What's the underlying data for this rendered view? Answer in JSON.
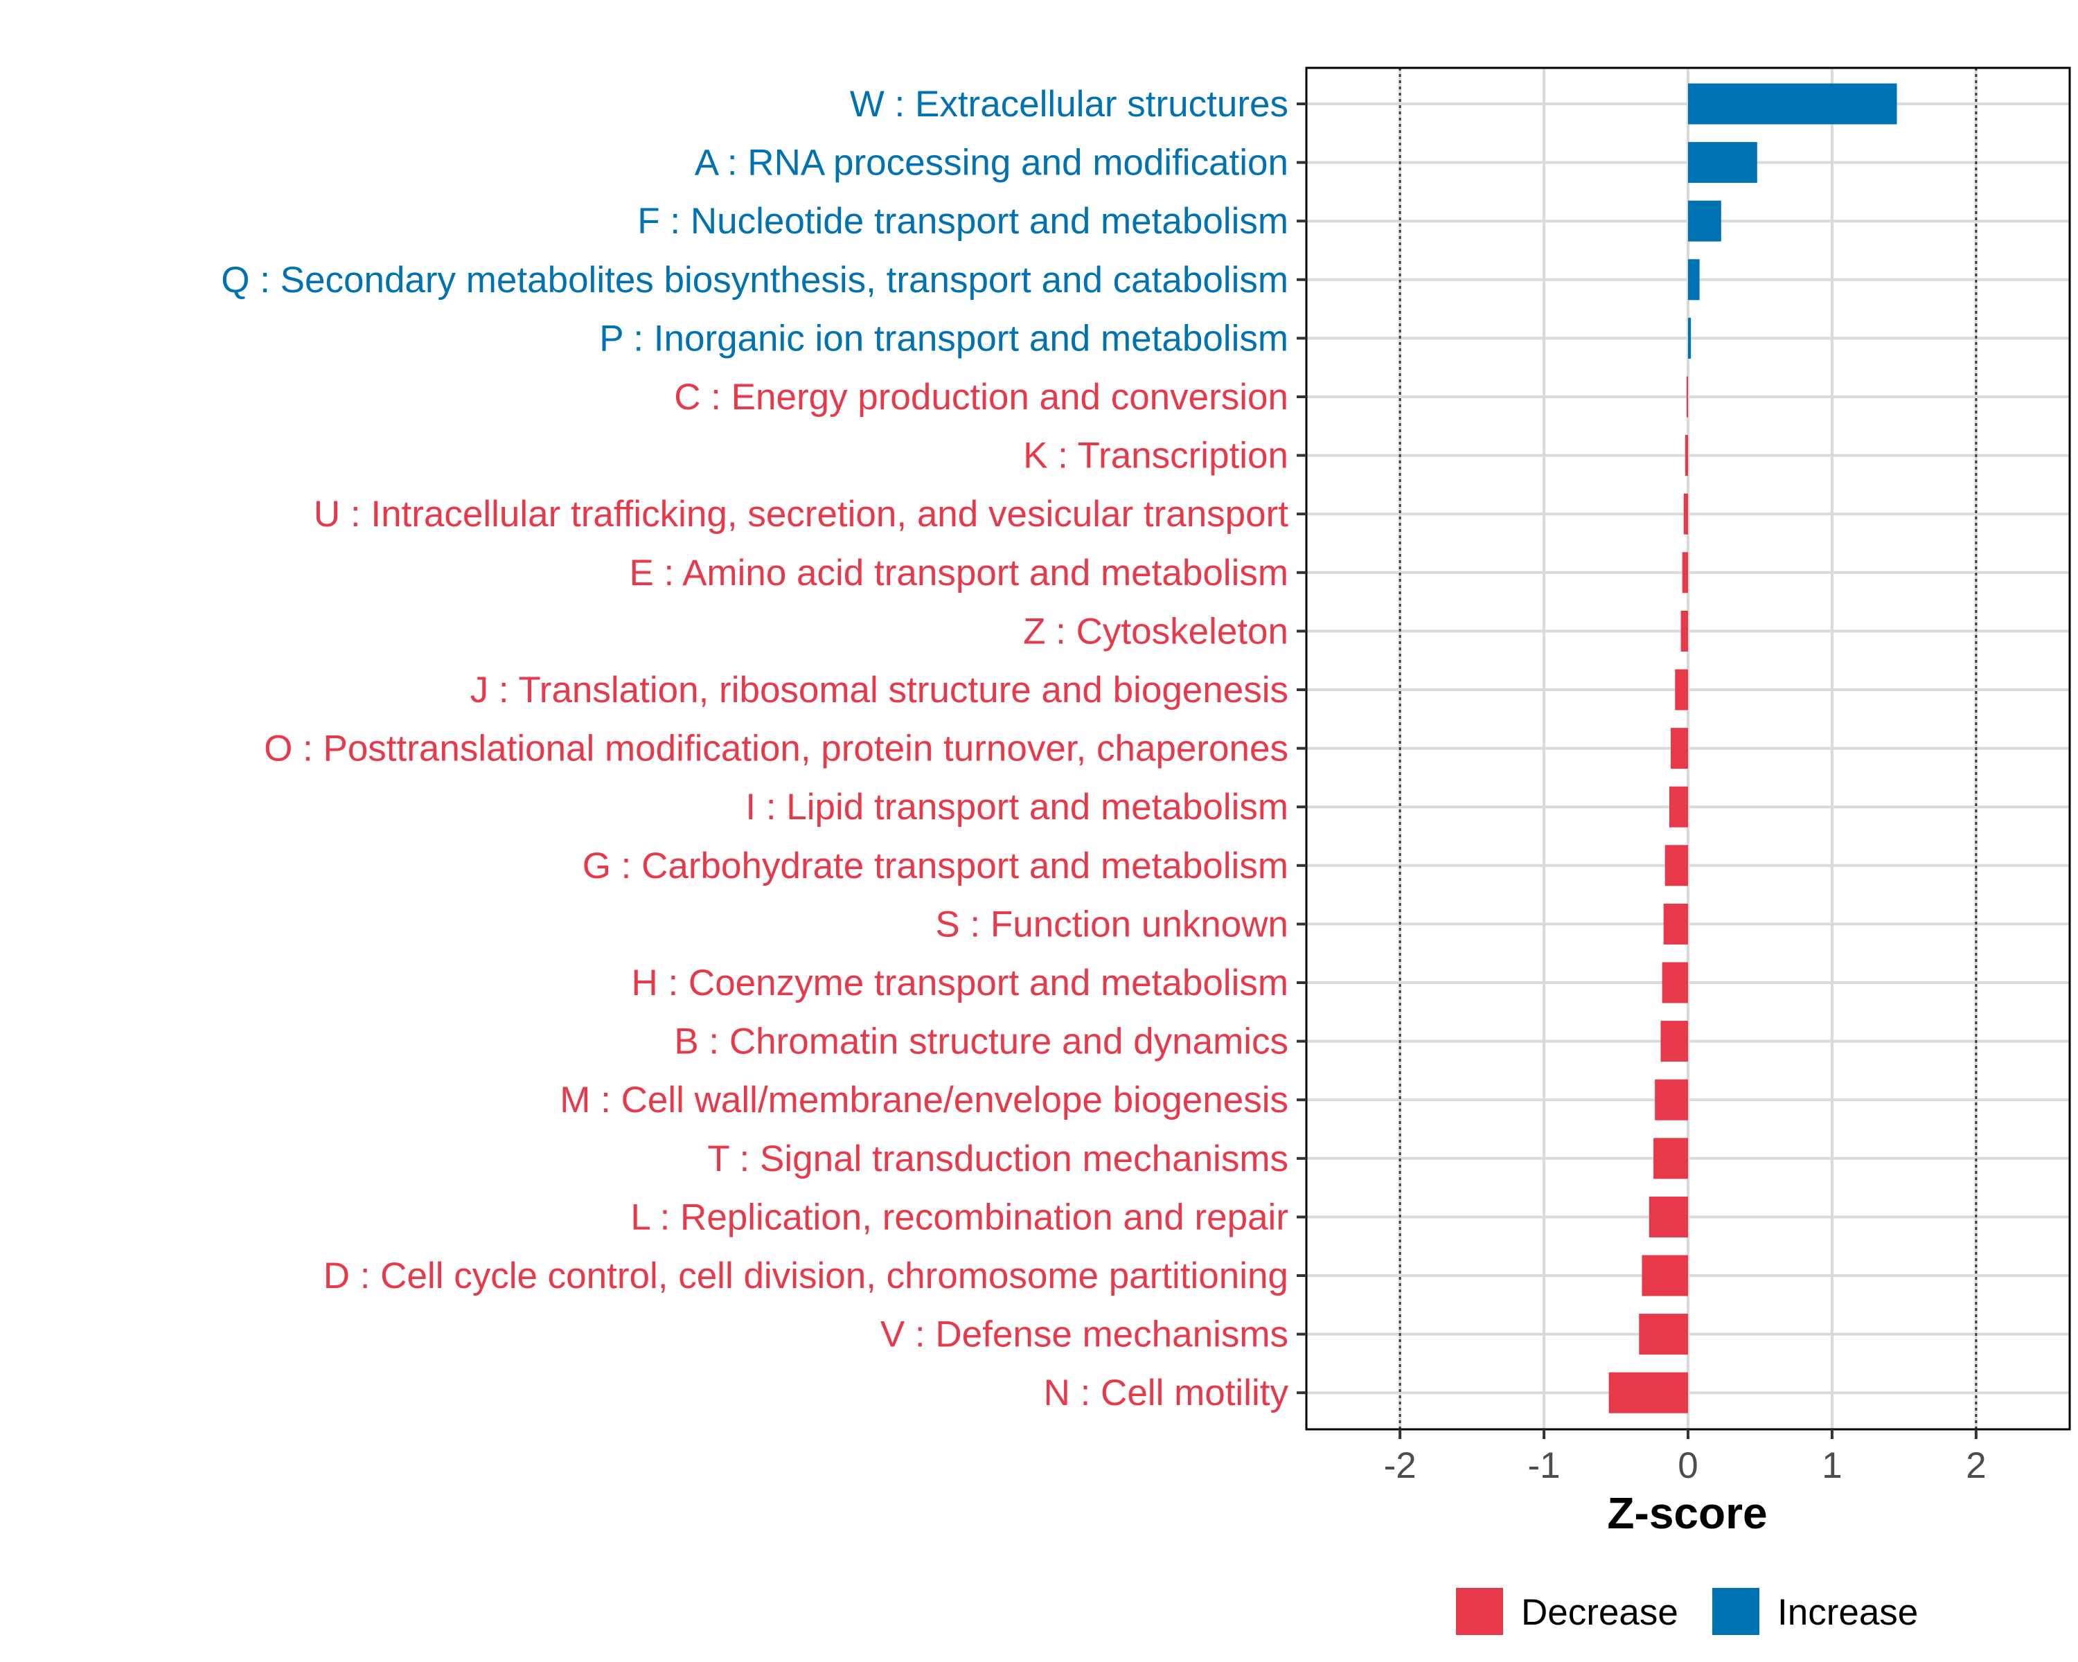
{
  "chart_data": {
    "type": "bar",
    "orientation": "horizontal",
    "xlabel": "Z-score",
    "xlim": [
      -2.65,
      2.65
    ],
    "x_ticks": [
      -2,
      -1,
      0,
      1,
      2
    ],
    "x_tick_labels": [
      "-2",
      "-1",
      "0",
      "1",
      "2"
    ],
    "reference_lines": [
      -2,
      2
    ],
    "grid": true,
    "colors": {
      "Increase": "#0072b2",
      "Decrease": "#e8394a"
    },
    "categories": [
      {
        "label": "W : Extracellular structures",
        "value": 1.45,
        "direction": "Increase"
      },
      {
        "label": "A : RNA processing and modification",
        "value": 0.48,
        "direction": "Increase"
      },
      {
        "label": "F : Nucleotide transport and metabolism",
        "value": 0.23,
        "direction": "Increase"
      },
      {
        "label": "Q : Secondary metabolites biosynthesis, transport and catabolism",
        "value": 0.08,
        "direction": "Increase"
      },
      {
        "label": "P : Inorganic ion transport and metabolism",
        "value": 0.02,
        "direction": "Increase"
      },
      {
        "label": "C : Energy production and conversion",
        "value": -0.01,
        "direction": "Decrease"
      },
      {
        "label": "K : Transcription",
        "value": -0.02,
        "direction": "Decrease"
      },
      {
        "label": "U : Intracellular trafficking, secretion, and vesicular transport",
        "value": -0.03,
        "direction": "Decrease"
      },
      {
        "label": "E : Amino acid transport and metabolism",
        "value": -0.04,
        "direction": "Decrease"
      },
      {
        "label": "Z : Cytoskeleton",
        "value": -0.05,
        "direction": "Decrease"
      },
      {
        "label": "J : Translation, ribosomal structure and biogenesis",
        "value": -0.09,
        "direction": "Decrease"
      },
      {
        "label": "O : Posttranslational modification, protein turnover, chaperones",
        "value": -0.12,
        "direction": "Decrease"
      },
      {
        "label": "I : Lipid transport and metabolism",
        "value": -0.13,
        "direction": "Decrease"
      },
      {
        "label": "G : Carbohydrate transport and metabolism",
        "value": -0.16,
        "direction": "Decrease"
      },
      {
        "label": "S : Function unknown",
        "value": -0.17,
        "direction": "Decrease"
      },
      {
        "label": "H : Coenzyme transport and metabolism",
        "value": -0.18,
        "direction": "Decrease"
      },
      {
        "label": "B : Chromatin structure and dynamics",
        "value": -0.19,
        "direction": "Decrease"
      },
      {
        "label": "M : Cell wall/membrane/envelope biogenesis",
        "value": -0.23,
        "direction": "Decrease"
      },
      {
        "label": "T : Signal transduction mechanisms",
        "value": -0.24,
        "direction": "Decrease"
      },
      {
        "label": "L : Replication, recombination and repair",
        "value": -0.27,
        "direction": "Decrease"
      },
      {
        "label": "D : Cell cycle control, cell division, chromosome partitioning",
        "value": -0.32,
        "direction": "Decrease"
      },
      {
        "label": "V : Defense mechanisms",
        "value": -0.34,
        "direction": "Decrease"
      },
      {
        "label": "N : Cell motility",
        "value": -0.55,
        "direction": "Decrease"
      }
    ],
    "legend": {
      "position": "bottom",
      "entries": [
        "Decrease",
        "Increase"
      ]
    }
  }
}
